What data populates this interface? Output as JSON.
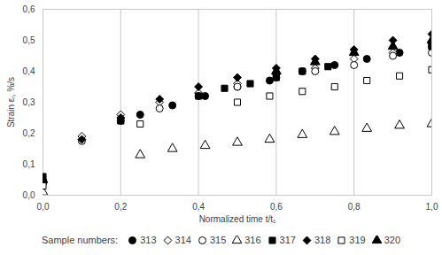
{
  "chart_data": {
    "type": "scatter",
    "xlabel": "Normalized time t/t₁",
    "ylabel": "Strain εᵢ, %/s",
    "xlim": [
      0,
      1
    ],
    "ylim": [
      0,
      0.6
    ],
    "xticks": [
      {
        "value": 0,
        "label": "0,0"
      },
      {
        "value": 0.2,
        "label": "0,2"
      },
      {
        "value": 0.4,
        "label": "0,4"
      },
      {
        "value": 0.6,
        "label": "0,6"
      },
      {
        "value": 0.8,
        "label": "0,8"
      },
      {
        "value": 1,
        "label": "1,0"
      }
    ],
    "yticks": [
      {
        "value": 0,
        "label": "0,0"
      },
      {
        "value": 0.1,
        "label": "0,1"
      },
      {
        "value": 0.2,
        "label": "0,2"
      },
      {
        "value": 0.3,
        "label": "0,3"
      },
      {
        "value": 0.4,
        "label": "0,4"
      },
      {
        "value": 0.5,
        "label": "0,5"
      },
      {
        "value": 0.6,
        "label": "0,6"
      }
    ],
    "grid": "x",
    "legend": "bottom",
    "legend_title": "Sample numbers:",
    "series": [
      {
        "name": "313",
        "color": "#000000",
        "marker": "circle",
        "x": [
          0,
          0.25,
          0.333,
          0.417,
          0.5,
          0.583,
          0.667,
          0.75,
          0.833,
          0.917,
          1.0
        ],
        "values": [
          0.04,
          0.26,
          0.29,
          0.32,
          0.35,
          0.37,
          0.4,
          0.42,
          0.44,
          0.46,
          0.48
        ]
      },
      {
        "name": "314",
        "color": "#000000",
        "marker": "diamond-open",
        "x": [
          0,
          0.1,
          0.2,
          0.3,
          0.4,
          0.5,
          0.6,
          0.7,
          0.8,
          0.9,
          1.0
        ],
        "values": [
          0.05,
          0.19,
          0.26,
          0.3,
          0.33,
          0.36,
          0.39,
          0.41,
          0.44,
          0.46,
          0.49
        ]
      },
      {
        "name": "315",
        "color": "#000000",
        "marker": "circle-open",
        "x": [
          0,
          0.1,
          0.2,
          0.3,
          0.4,
          0.5,
          0.6,
          0.7,
          0.8,
          0.9,
          1.0
        ],
        "values": [
          0.04,
          0.175,
          0.24,
          0.28,
          0.32,
          0.35,
          0.38,
          0.4,
          0.42,
          0.45,
          0.46
        ]
      },
      {
        "name": "316",
        "color": "#000000",
        "marker": "triangle-open",
        "x": [
          0,
          0.25,
          0.333,
          0.417,
          0.5,
          0.583,
          0.667,
          0.75,
          0.833,
          0.917,
          1.0
        ],
        "values": [
          0.01,
          0.13,
          0.15,
          0.16,
          0.17,
          0.18,
          0.195,
          0.205,
          0.215,
          0.225,
          0.23
        ]
      },
      {
        "name": "317",
        "color": "#000000",
        "marker": "square",
        "x": [
          0,
          0.2,
          0.4,
          0.467,
          0.533,
          0.6,
          0.667,
          0.733,
          1.0
        ],
        "values": [
          0.06,
          0.24,
          0.32,
          0.345,
          0.36,
          0.38,
          0.4,
          0.415,
          0.48
        ]
      },
      {
        "name": "318",
        "color": "#000000",
        "marker": "diamond",
        "x": [
          0,
          0.1,
          0.2,
          0.3,
          0.4,
          0.5,
          0.6,
          0.7,
          0.8,
          0.9,
          1.0
        ],
        "values": [
          0.04,
          0.18,
          0.25,
          0.31,
          0.35,
          0.38,
          0.41,
          0.44,
          0.47,
          0.5,
          0.52
        ]
      },
      {
        "name": "319",
        "color": "#000000",
        "marker": "square-open",
        "x": [
          0,
          0.25,
          0.5,
          0.583,
          0.667,
          0.75,
          0.833,
          0.917,
          1.0
        ],
        "values": [
          0.03,
          0.23,
          0.3,
          0.32,
          0.335,
          0.35,
          0.37,
          0.385,
          0.405
        ]
      },
      {
        "name": "320",
        "color": "#000000",
        "marker": "triangle",
        "x": [
          0,
          0.6,
          0.7,
          0.8,
          0.9,
          1.0
        ],
        "values": [
          0.05,
          0.4,
          0.43,
          0.46,
          0.48,
          0.5
        ]
      }
    ]
  }
}
